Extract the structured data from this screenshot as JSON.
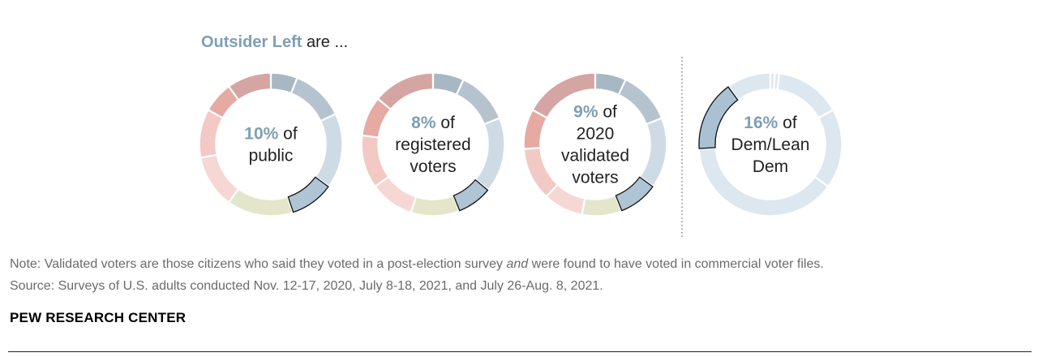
{
  "headline": {
    "group_name": "Outsider Left",
    "rest": " are ..."
  },
  "chart_data": {
    "type": "pie",
    "subtype": "donut",
    "colors": {
      "accent": "#7e9fb5",
      "neutral_text": "#222222"
    },
    "charts": [
      {
        "pct_text": "10%",
        "label_lines": [
          "of",
          "public"
        ],
        "highlight_value": 10,
        "slices": [
          {
            "value": 6,
            "color": "#a8b7c4"
          },
          {
            "value": 12,
            "color": "#b5c3cf"
          },
          {
            "value": 17,
            "color": "#cfdbe4"
          },
          {
            "value": 10,
            "color": "#afc4d4",
            "highlight": true
          },
          {
            "value": 15,
            "color": "#e4e6cc"
          },
          {
            "value": 12,
            "color": "#f6d7d3"
          },
          {
            "value": 11,
            "color": "#f2c9c4"
          },
          {
            "value": 7,
            "color": "#e6aaa2"
          },
          {
            "value": 10,
            "color": "#d4a5a2"
          }
        ]
      },
      {
        "pct_text": "8%",
        "label_lines": [
          "of",
          "registered",
          "voters"
        ],
        "highlight_value": 8,
        "slices": [
          {
            "value": 7,
            "color": "#a8b7c4"
          },
          {
            "value": 12,
            "color": "#b5c3cf"
          },
          {
            "value": 17,
            "color": "#cfdbe4"
          },
          {
            "value": 8,
            "color": "#afc4d4",
            "highlight": true
          },
          {
            "value": 11,
            "color": "#e4e6cc"
          },
          {
            "value": 10,
            "color": "#f6d7d3"
          },
          {
            "value": 12,
            "color": "#f2c9c4"
          },
          {
            "value": 9,
            "color": "#e6aaa2"
          },
          {
            "value": 14,
            "color": "#d4a5a2"
          }
        ]
      },
      {
        "pct_text": "9%",
        "label_lines": [
          "of",
          "2020",
          "validated",
          "voters"
        ],
        "highlight_value": 9,
        "slices": [
          {
            "value": 7,
            "color": "#a8b7c4"
          },
          {
            "value": 12,
            "color": "#b5c3cf"
          },
          {
            "value": 16,
            "color": "#cfdbe4"
          },
          {
            "value": 9,
            "color": "#afc4d4",
            "highlight": true
          },
          {
            "value": 9,
            "color": "#e4e6cc"
          },
          {
            "value": 9,
            "color": "#f6d7d3"
          },
          {
            "value": 12,
            "color": "#f2c9c4"
          },
          {
            "value": 9,
            "color": "#e6aaa2"
          },
          {
            "value": 17,
            "color": "#d4a5a2"
          }
        ]
      },
      {
        "pct_text": "16%",
        "label_lines": [
          "of",
          "Dem/Lean",
          "Dem"
        ],
        "highlight_value": 16,
        "slices": [
          {
            "value": 1,
            "color": "#dde7ef"
          },
          {
            "value": 1,
            "color": "#dde7ef"
          },
          {
            "value": 15,
            "color": "#dde7ef"
          },
          {
            "value": 18,
            "color": "#dde7ef"
          },
          {
            "value": 39,
            "color": "#dde7ef"
          },
          {
            "value": 16,
            "color": "#a9c1d3",
            "highlight": true
          },
          {
            "value": 10,
            "color": "#dde7ef"
          }
        ]
      }
    ]
  },
  "footer": {
    "note_prefix": "Note: Validated voters are those citizens who said they voted in a post-election survey ",
    "note_italic": "and",
    "note_suffix": " were found to have voted in commercial voter files.",
    "source": "Source: Surveys of U.S. adults conducted Nov. 12-17, 2020, July 8-18, 2021, and July 26-Aug. 8, 2021.",
    "brand": "PEW RESEARCH CENTER"
  }
}
